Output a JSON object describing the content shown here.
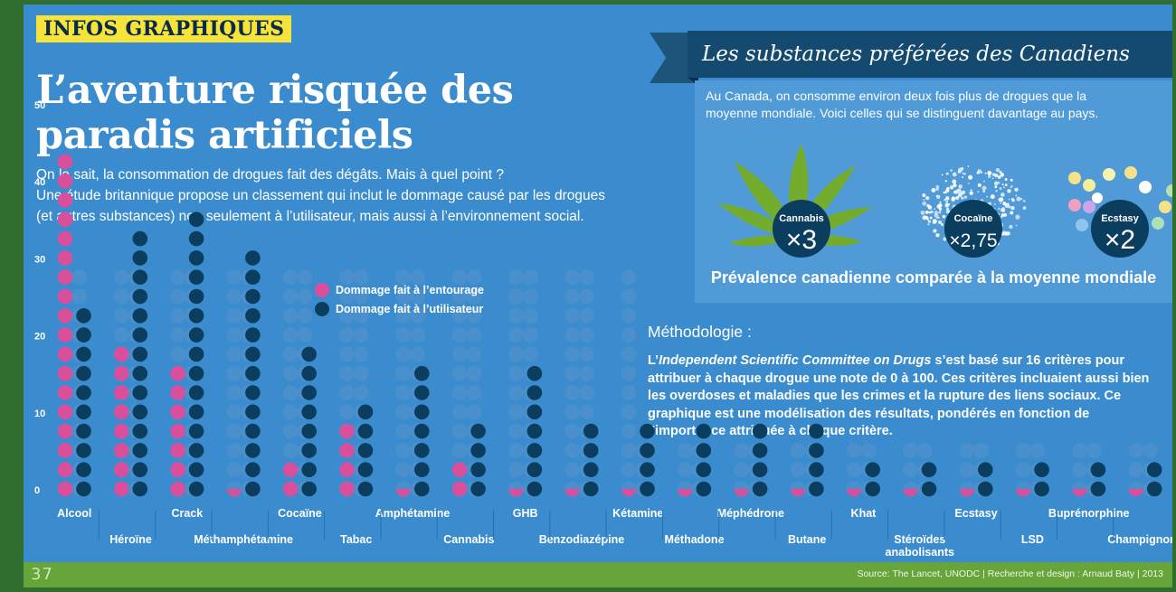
{
  "header": {
    "tag": "INFOS GRAPHIQUES",
    "title_line1": "L’aventure risquée des",
    "title_line2": "paradis artificiels",
    "intro_line1": "On le sait, la consommation de drogues fait des dégâts. Mais à quel point ?",
    "intro_line2": "Une étude britannique propose un classement qui inclut le dommage causé par les drogues",
    "intro_line3": "(et autres substances) non seulement à l’utilisateur, mais aussi à l’environnement social."
  },
  "prevalence": {
    "banner_title": "Les substances préférées des Canadiens",
    "intro_line1": "Au Canada, on consomme environ deux fois plus de drogues que la",
    "intro_line2": "moyenne mondiale. Voici celles qui se distinguent davantage au pays.",
    "items": [
      {
        "name": "Cannabis",
        "multiplier": "×3"
      },
      {
        "name": "Cocaïne",
        "multiplier": "×2,75"
      },
      {
        "name": "Ecstasy",
        "multiplier": "×2"
      }
    ],
    "caption": "Prévalence canadienne comparée à la moyenne mondiale"
  },
  "methodology": {
    "heading": "Méthodologie :",
    "prefix": "L’",
    "committee": "Independent Scientific Committee on Drugs",
    "text_rest": " s’est basé sur 16 critères pour attribuer à chaque drogue une note de 0 à 100. Ces critères incluaient aussi bien les overdoses et maladies que les crimes et la rupture des liens sociaux. Ce graphique est une modélisation des résultats, pondérés en fonction de l’importance attribuée à chaque critère."
  },
  "footer": {
    "logo": "37",
    "source": "Source: The Lancet, UNODC | Recherche et design : Arnaud Baty | 2013"
  },
  "colors": {
    "entourage": "#d94f9c",
    "utilisateur": "#0b3d5e",
    "background_dot": "#4a90cd",
    "panel": "#3b8ccf"
  },
  "chart_data": {
    "type": "bar",
    "title": "",
    "xlabel": "",
    "ylabel": "",
    "ylim": [
      0,
      50
    ],
    "yticks": [
      0,
      10,
      20,
      30,
      40,
      50
    ],
    "legend": [
      "Dommage fait à l’entourage",
      "Dommage fait à l’utilisateur"
    ],
    "legend_position": "top",
    "categories": [
      "Alcool",
      "Héroïne",
      "Crack",
      "Méthamphétamine",
      "Cocaïne",
      "Tabac",
      "Amphétamine",
      "Cannabis",
      "GHB",
      "Benzodiazépine",
      "Kétamine",
      "Méthadone",
      "Méphédrone",
      "Butane",
      "Khat",
      "Stéroïdes anabolisants",
      "Ecstasy",
      "LSD",
      "Buprénorphine",
      "Champignons"
    ],
    "series": [
      {
        "name": "Dommage fait à l’entourage",
        "values": [
          46,
          21,
          17,
          1,
          4,
          9,
          1,
          4,
          1,
          1,
          1,
          1,
          0,
          0,
          0,
          0,
          0,
          0,
          0,
          0
        ]
      },
      {
        "name": "Dommage fait à l’utilisateur",
        "values": [
          26,
          34,
          37,
          32,
          19,
          13,
          18,
          10,
          18,
          10,
          10,
          10,
          10,
          10,
          5,
          5,
          5,
          5,
          5,
          5
        ]
      }
    ]
  }
}
